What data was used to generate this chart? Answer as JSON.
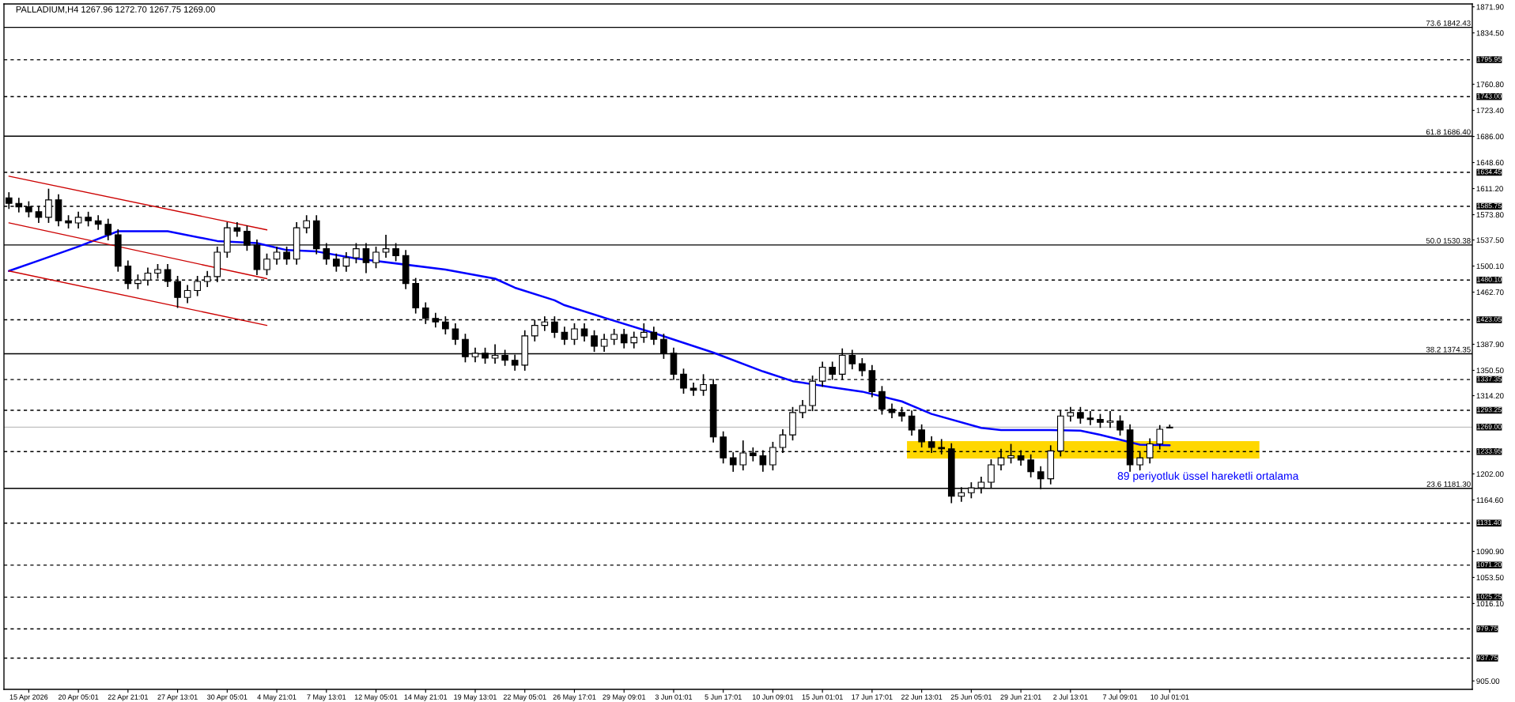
{
  "chart_data": {
    "type": "candlestick",
    "title": "PALLADIUM,H4 1267.96 1272.70 1267.75 1269.00",
    "categories": [
      null,
      null,
      "15 Apr 2026",
      null,
      null,
      null,
      null,
      "20 Apr 05:01",
      null,
      null,
      null,
      null,
      "22 Apr 21:01",
      null,
      null,
      null,
      null,
      "27 Apr 13:01",
      null,
      null,
      null,
      null,
      "30 Apr 05:01",
      null,
      null,
      null,
      null,
      "4 May 21:01",
      null,
      null,
      null,
      null,
      "7 May 13:01",
      null,
      null,
      null,
      null,
      "12 May 05:01",
      null,
      null,
      null,
      null,
      "14 May 21:01",
      null,
      null,
      null,
      null,
      "19 May 13:01",
      null,
      null,
      null,
      null,
      "22 May 05:01",
      null,
      null,
      null,
      null,
      "26 May 17:01",
      null,
      null,
      null,
      null,
      "29 May 09:01",
      null,
      null,
      null,
      null,
      "3 Jun 01:01",
      null,
      null,
      null,
      null,
      "5 Jun 17:01",
      null,
      null,
      null,
      null,
      "10 Jun 09:01",
      null,
      null,
      null,
      null,
      "15 Jun 01:01",
      null,
      null,
      null,
      null,
      "17 Jun 17:01",
      null,
      null,
      null,
      null,
      "22 Jun 13:01",
      null,
      null,
      null,
      null,
      "25 Jun 05:01",
      null,
      null,
      null,
      null,
      "29 Jun 21:01",
      null,
      null,
      null,
      null,
      "2 Jul 13:01",
      null,
      null,
      null,
      null,
      "7 Jul 09:01",
      null,
      null,
      null,
      null,
      "10 Jul 01:01",
      null,
      null,
      null,
      null,
      null,
      null,
      null,
      null,
      null,
      null,
      null,
      null,
      null,
      null,
      null,
      null,
      null,
      null,
      null,
      null,
      null,
      null,
      null,
      null,
      null,
      null,
      null,
      null,
      null,
      null
    ],
    "ohlc": [
      [
        1598,
        1606,
        1582,
        1590
      ],
      [
        1590,
        1598,
        1577,
        1585
      ],
      [
        1585,
        1593,
        1570,
        1578
      ],
      [
        1578,
        1586,
        1562,
        1570
      ],
      [
        1570,
        1611,
        1562,
        1595
      ],
      [
        1595,
        1603,
        1557,
        1565
      ],
      [
        1565,
        1573,
        1554,
        1562
      ],
      [
        1562,
        1578,
        1554,
        1570
      ],
      [
        1570,
        1578,
        1557,
        1565
      ],
      [
        1565,
        1573,
        1552,
        1560
      ],
      [
        1560,
        1568,
        1537,
        1545
      ],
      [
        1545,
        1553,
        1492,
        1500
      ],
      [
        1500,
        1508,
        1467,
        1475
      ],
      [
        1475,
        1488,
        1467,
        1480
      ],
      [
        1480,
        1498,
        1472,
        1490
      ],
      [
        1490,
        1503,
        1482,
        1495
      ],
      [
        1495,
        1503,
        1470,
        1478
      ],
      [
        1478,
        1486,
        1440,
        1455
      ],
      [
        1455,
        1473,
        1447,
        1465
      ],
      [
        1465,
        1486,
        1457,
        1478
      ],
      [
        1478,
        1493,
        1470,
        1485
      ],
      [
        1485,
        1528,
        1477,
        1520
      ],
      [
        1520,
        1563,
        1512,
        1555
      ],
      [
        1555,
        1563,
        1542,
        1550
      ],
      [
        1550,
        1558,
        1522,
        1530
      ],
      [
        1530,
        1538,
        1487,
        1495
      ],
      [
        1495,
        1518,
        1487,
        1510
      ],
      [
        1510,
        1528,
        1502,
        1520
      ],
      [
        1520,
        1528,
        1502,
        1510
      ],
      [
        1510,
        1563,
        1502,
        1555
      ],
      [
        1555,
        1573,
        1547,
        1565
      ],
      [
        1565,
        1573,
        1517,
        1525
      ],
      [
        1525,
        1533,
        1502,
        1510
      ],
      [
        1510,
        1518,
        1492,
        1500
      ],
      [
        1500,
        1520,
        1492,
        1512
      ],
      [
        1512,
        1533,
        1504,
        1525
      ],
      [
        1525,
        1533,
        1490,
        1505
      ],
      [
        1505,
        1528,
        1497,
        1520
      ],
      [
        1520,
        1545,
        1512,
        1525
      ],
      [
        1525,
        1533,
        1507,
        1515
      ],
      [
        1515,
        1523,
        1467,
        1475
      ],
      [
        1475,
        1483,
        1432,
        1440
      ],
      [
        1440,
        1448,
        1417,
        1425
      ],
      [
        1425,
        1433,
        1412,
        1420
      ],
      [
        1420,
        1428,
        1402,
        1410
      ],
      [
        1410,
        1418,
        1387,
        1395
      ],
      [
        1395,
        1403,
        1362,
        1370
      ],
      [
        1370,
        1383,
        1362,
        1375
      ],
      [
        1375,
        1383,
        1360,
        1368
      ],
      [
        1368,
        1388,
        1360,
        1372
      ],
      [
        1372,
        1380,
        1357,
        1365
      ],
      [
        1365,
        1373,
        1350,
        1358
      ],
      [
        1358,
        1408,
        1350,
        1400
      ],
      [
        1400,
        1423,
        1392,
        1415
      ],
      [
        1415,
        1428,
        1407,
        1420
      ],
      [
        1420,
        1428,
        1397,
        1405
      ],
      [
        1405,
        1413,
        1387,
        1395
      ],
      [
        1395,
        1418,
        1387,
        1410
      ],
      [
        1410,
        1418,
        1392,
        1400
      ],
      [
        1400,
        1408,
        1377,
        1385
      ],
      [
        1385,
        1403,
        1377,
        1395
      ],
      [
        1395,
        1410,
        1387,
        1402
      ],
      [
        1402,
        1410,
        1382,
        1390
      ],
      [
        1390,
        1406,
        1382,
        1398
      ],
      [
        1398,
        1418,
        1390,
        1405
      ],
      [
        1405,
        1413,
        1387,
        1395
      ],
      [
        1395,
        1403,
        1367,
        1375
      ],
      [
        1375,
        1383,
        1337,
        1345
      ],
      [
        1345,
        1353,
        1317,
        1325
      ],
      [
        1325,
        1333,
        1314,
        1322
      ],
      [
        1322,
        1345,
        1314,
        1330
      ],
      [
        1330,
        1338,
        1247,
        1255
      ],
      [
        1255,
        1263,
        1217,
        1225
      ],
      [
        1225,
        1233,
        1205,
        1215
      ],
      [
        1215,
        1250,
        1207,
        1232
      ],
      [
        1232,
        1240,
        1220,
        1228
      ],
      [
        1228,
        1236,
        1205,
        1215
      ],
      [
        1215,
        1248,
        1207,
        1240
      ],
      [
        1240,
        1266,
        1232,
        1258
      ],
      [
        1258,
        1298,
        1250,
        1290
      ],
      [
        1290,
        1308,
        1282,
        1300
      ],
      [
        1300,
        1343,
        1292,
        1335
      ],
      [
        1335,
        1363,
        1327,
        1355
      ],
      [
        1355,
        1363,
        1337,
        1345
      ],
      [
        1345,
        1382,
        1337,
        1372
      ],
      [
        1372,
        1380,
        1352,
        1360
      ],
      [
        1360,
        1368,
        1342,
        1350
      ],
      [
        1350,
        1358,
        1312,
        1320
      ],
      [
        1320,
        1328,
        1287,
        1295
      ],
      [
        1295,
        1303,
        1282,
        1290
      ],
      [
        1290,
        1298,
        1277,
        1285
      ],
      [
        1285,
        1293,
        1257,
        1265
      ],
      [
        1265,
        1273,
        1240,
        1248
      ],
      [
        1248,
        1256,
        1232,
        1240
      ],
      [
        1240,
        1252,
        1230,
        1238
      ],
      [
        1238,
        1246,
        1160,
        1170
      ],
      [
        1170,
        1183,
        1162,
        1175
      ],
      [
        1175,
        1190,
        1167,
        1182
      ],
      [
        1182,
        1198,
        1174,
        1190
      ],
      [
        1190,
        1223,
        1182,
        1215
      ],
      [
        1215,
        1238,
        1207,
        1225
      ],
      [
        1225,
        1245,
        1217,
        1228
      ],
      [
        1228,
        1236,
        1214,
        1222
      ],
      [
        1222,
        1230,
        1197,
        1205
      ],
      [
        1205,
        1213,
        1180,
        1195
      ],
      [
        1195,
        1243,
        1187,
        1235
      ],
      [
        1235,
        1293,
        1227,
        1285
      ],
      [
        1285,
        1298,
        1277,
        1290
      ],
      [
        1290,
        1298,
        1274,
        1282
      ],
      [
        1282,
        1292,
        1272,
        1280
      ],
      [
        1280,
        1288,
        1268,
        1276
      ],
      [
        1276,
        1292,
        1268,
        1278
      ],
      [
        1278,
        1286,
        1257,
        1265
      ],
      [
        1265,
        1273,
        1205,
        1215
      ],
      [
        1215,
        1233,
        1207,
        1225
      ],
      [
        1225,
        1253,
        1217,
        1245
      ],
      [
        1245,
        1272,
        1237,
        1266
      ],
      [
        1267.96,
        1272.7,
        1267.75,
        1269.0
      ],
      null,
      null,
      null,
      null,
      null,
      null,
      null,
      null,
      null,
      null,
      null,
      null,
      null,
      null,
      null,
      null,
      null,
      null,
      null,
      null,
      null,
      null,
      null,
      null,
      null,
      null,
      null,
      null,
      null,
      null
    ],
    "series": [
      {
        "name": "89 periyotluk üssel hareketli ortalama",
        "type": "line",
        "color": "#0000ff",
        "values": [
          1493,
          null,
          null,
          1508,
          null,
          null,
          null,
          1528,
          null,
          null,
          null,
          1550,
          null,
          null,
          null,
          null,
          1550,
          null,
          null,
          null,
          null,
          1536,
          null,
          null,
          null,
          1533,
          null,
          null,
          1523,
          null,
          null,
          1521,
          null,
          null,
          null,
          1511,
          null,
          null,
          null,
          null,
          null,
          null,
          null,
          null,
          1495,
          null,
          null,
          null,
          null,
          1482,
          null,
          1469,
          null,
          null,
          null,
          1451,
          1444,
          null,
          null,
          null,
          1426,
          null,
          null,
          null,
          null,
          1404,
          null,
          null,
          null,
          null,
          null,
          1376,
          null,
          null,
          null,
          null,
          1349,
          null,
          null,
          1335,
          null,
          null,
          null,
          1326,
          null,
          null,
          1320,
          null,
          null,
          null,
          1306,
          null,
          null,
          1288,
          null,
          null,
          null,
          null,
          1268,
          null,
          1265,
          null,
          null,
          null,
          null,
          1265,
          null,
          null,
          1264,
          null,
          1258,
          null,
          null,
          null,
          1244,
          null,
          null,
          1243,
          null,
          null,
          null,
          null,
          null,
          null,
          null,
          null,
          null,
          null,
          null,
          null,
          null,
          null,
          null,
          null,
          null,
          null,
          null,
          null,
          null,
          null,
          null,
          null,
          null,
          null,
          null,
          null,
          null,
          null
        ]
      },
      {
        "type": "line",
        "color": "#cc0000",
        "values": [
          1629,
          null,
          null,
          null,
          null,
          null,
          null,
          null,
          null,
          null,
          null,
          null,
          null,
          null,
          null,
          null,
          null,
          null,
          null,
          null,
          null,
          null,
          null,
          null,
          null,
          null,
          1552,
          null,
          null,
          null,
          null,
          null,
          null,
          null,
          null,
          null,
          null,
          null,
          null,
          null,
          null,
          null,
          null,
          null,
          null,
          null,
          null,
          null,
          null,
          null,
          null,
          null,
          null,
          null,
          null,
          null,
          null,
          null,
          null,
          null,
          null,
          null,
          null,
          null,
          null,
          null,
          null,
          null,
          null,
          null,
          null,
          null,
          null,
          null,
          null,
          null,
          null,
          null,
          null,
          null,
          null,
          null,
          null,
          null,
          null,
          null,
          null,
          null,
          null,
          null,
          null,
          null,
          null,
          null,
          null,
          null,
          null,
          null,
          null,
          null,
          null,
          null,
          null,
          null,
          null,
          null,
          null,
          null,
          null,
          null,
          null,
          null,
          null,
          null,
          null,
          null,
          null,
          null,
          null,
          null,
          null,
          null,
          null,
          null,
          null,
          null,
          null,
          null,
          null,
          null,
          null,
          null,
          null,
          null,
          null,
          null,
          null,
          null,
          null,
          null,
          null,
          null,
          null,
          null,
          null,
          null,
          null,
          null
        ]
      },
      {
        "type": "line",
        "color": "#cc0000",
        "values": [
          1562,
          null,
          null,
          null,
          null,
          null,
          null,
          null,
          null,
          null,
          null,
          null,
          null,
          null,
          null,
          null,
          null,
          null,
          null,
          null,
          null,
          null,
          null,
          null,
          null,
          null,
          1482,
          null,
          null,
          null,
          null,
          null,
          null,
          null,
          null,
          null,
          null,
          null,
          null,
          null,
          null,
          null,
          null,
          null,
          null,
          null,
          null,
          null,
          null,
          null,
          null,
          null,
          null,
          null,
          null,
          null,
          null,
          null,
          null,
          null,
          null,
          null,
          null,
          null,
          null,
          null,
          null,
          null,
          null,
          null,
          null,
          null,
          null,
          null,
          null,
          null,
          null,
          null,
          null,
          null,
          null,
          null,
          null,
          null,
          null,
          null,
          null,
          null,
          null,
          null,
          null,
          null,
          null,
          null,
          null,
          null,
          null,
          null,
          null,
          null,
          null,
          null,
          null,
          null,
          null,
          null,
          null,
          null,
          null,
          null,
          null,
          null,
          null,
          null,
          null,
          null,
          null,
          null,
          null,
          null,
          null,
          null,
          null,
          null,
          null,
          null,
          null,
          null,
          null,
          null,
          null,
          null,
          null,
          null,
          null,
          null,
          null,
          null,
          null,
          null,
          null,
          null,
          null,
          null,
          null,
          null,
          null,
          null
        ]
      },
      {
        "type": "line",
        "color": "#cc0000",
        "values": [
          1493,
          null,
          null,
          null,
          null,
          null,
          null,
          null,
          null,
          null,
          null,
          null,
          null,
          null,
          null,
          null,
          null,
          null,
          null,
          null,
          null,
          null,
          null,
          null,
          null,
          null,
          1415,
          null,
          null,
          null,
          null,
          null,
          null,
          null,
          null,
          null,
          null,
          null,
          null,
          null,
          null,
          null,
          null,
          null,
          null,
          null,
          null,
          null,
          null,
          null,
          null,
          null,
          null,
          null,
          null,
          null,
          null,
          null,
          null,
          null,
          null,
          null,
          null,
          null,
          null,
          null,
          null,
          null,
          null,
          null,
          null,
          null,
          null,
          null,
          null,
          null,
          null,
          null,
          null,
          null,
          null,
          null,
          null,
          null,
          null,
          null,
          null,
          null,
          null,
          null,
          null,
          null,
          null,
          null,
          null,
          null,
          null,
          null,
          null,
          null,
          null,
          null,
          null,
          null,
          null,
          null,
          null,
          null,
          null,
          null,
          null,
          null,
          null,
          null,
          null,
          null,
          null,
          null,
          null,
          null,
          null,
          null,
          null,
          null,
          null,
          null,
          null,
          null,
          null,
          null,
          null,
          null,
          null,
          null,
          null,
          null,
          null,
          null,
          null,
          null,
          null,
          null,
          null,
          null,
          null,
          null,
          null,
          null
        ]
      }
    ],
    "ylim": [
      893,
      1876
    ],
    "yticks": [
      {
        "value": 1871.9,
        "label": "1871.90"
      },
      {
        "value": 1834.5,
        "label": "1834.50"
      },
      {
        "value": 1760.8,
        "label": "1760.80"
      },
      {
        "value": 1723.4,
        "label": "1723.40"
      },
      {
        "value": 1686,
        "label": "1686.00"
      },
      {
        "value": 1648.6,
        "label": "1648.60"
      },
      {
        "value": 1611.2,
        "label": "1611.20"
      },
      {
        "value": 1573.8,
        "label": "1573.80"
      },
      {
        "value": 1537.5,
        "label": "1537.50"
      },
      {
        "value": 1500.1,
        "label": "1500.10"
      },
      {
        "value": 1462.7,
        "label": "1462.70"
      },
      {
        "value": 1387.9,
        "label": "1387.90"
      },
      {
        "value": 1350.5,
        "label": "1350.50"
      },
      {
        "value": 1314.2,
        "label": "1314.20"
      },
      {
        "value": 1202,
        "label": "1202.00"
      },
      {
        "value": 1164.6,
        "label": "1164.60"
      },
      {
        "value": 1090.9,
        "label": "1090.90"
      },
      {
        "value": 1053.5,
        "label": "1053.50"
      },
      {
        "value": 1016.1,
        "label": "1016.10"
      },
      {
        "value": 905,
        "label": "905.00"
      }
    ],
    "ref_lines": [
      {
        "axis": "y",
        "value": 1842.43,
        "label": "73.6 1842.43",
        "line_style": "solid",
        "color": "#000000"
      },
      {
        "axis": "y",
        "value": 1795.95,
        "label": "1795.95",
        "line_style": "dashed",
        "color": "#000000"
      },
      {
        "axis": "y",
        "value": 1743.0,
        "label": "1743.00",
        "line_style": "dashed",
        "color": "#000000"
      },
      {
        "axis": "y",
        "value": 1686.4,
        "label": "61.8 1686.40",
        "line_style": "solid",
        "color": "#000000"
      },
      {
        "axis": "y",
        "value": 1634.45,
        "label": "1634.45",
        "line_style": "dashed",
        "color": "#000000"
      },
      {
        "axis": "y",
        "value": 1585.75,
        "label": "1585.75",
        "line_style": "dashed",
        "color": "#000000"
      },
      {
        "axis": "y",
        "value": 1530.38,
        "label": "50.0 1530.38",
        "line_style": "solid",
        "color": "#000000"
      },
      {
        "axis": "y",
        "value": 1480.1,
        "label": "1480.10",
        "line_style": "dashed",
        "color": "#000000"
      },
      {
        "axis": "y",
        "value": 1423.05,
        "label": "1423.05",
        "line_style": "dashed",
        "color": "#000000"
      },
      {
        "axis": "y",
        "value": 1374.35,
        "label": "38.2 1374.35",
        "line_style": "solid",
        "color": "#000000"
      },
      {
        "axis": "y",
        "value": 1337.35,
        "label": "1337.35",
        "line_style": "dashed",
        "color": "#000000"
      },
      {
        "axis": "y",
        "value": 1293.25,
        "label": "1293.25",
        "line_style": "dashed",
        "color": "#000000"
      },
      {
        "axis": "y",
        "value": 1269.0,
        "label": "1269.00",
        "line_style": "solid",
        "color": "#c0c0c0"
      },
      {
        "axis": "y",
        "value": 1233.95,
        "label": "1233.95",
        "line_style": "dashed",
        "color": "#000000"
      },
      {
        "axis": "y",
        "value": 1181.3,
        "label": "23.6 1181.30",
        "line_style": "solid",
        "color": "#000000"
      },
      {
        "axis": "y",
        "value": 1131.4,
        "label": "1131.40",
        "line_style": "dashed",
        "color": "#000000"
      },
      {
        "axis": "y",
        "value": 1071.2,
        "label": "1071.20",
        "line_style": "dashed",
        "color": "#000000"
      },
      {
        "axis": "y",
        "value": 1025.25,
        "label": "1025.25",
        "line_style": "dashed",
        "color": "#000000"
      },
      {
        "axis": "y",
        "value": 979.75,
        "label": "979.75",
        "line_style": "dashed",
        "color": "#000000"
      },
      {
        "axis": "y",
        "value": 937.75,
        "label": "937.75",
        "line_style": "dashed",
        "color": "#000000"
      }
    ],
    "bands": [
      {
        "axis": "y",
        "from": 1224,
        "to": 1249,
        "color": "#ffd700"
      }
    ]
  }
}
